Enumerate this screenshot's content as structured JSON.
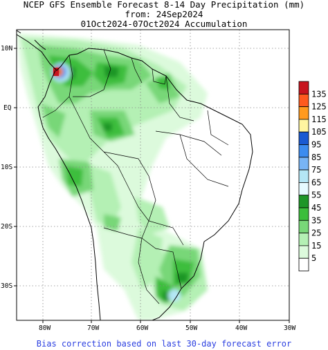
{
  "title": {
    "line1": "NCEP GFS Ensemble Forecast 8-14 Day Precipitation (mm)",
    "line2": "from: 24Sep2024",
    "line3": "01Oct2024-07Oct2024 Accumulation"
  },
  "footer": "Bias correction based on last 30-day forecast error",
  "axes": {
    "lon_ticks": [
      "80W",
      "70W",
      "60W",
      "50W",
      "40W",
      "30W"
    ],
    "lat_ticks": [
      "10N",
      "EQ",
      "10S",
      "20S",
      "30S"
    ]
  },
  "legend": [
    {
      "label": "135",
      "color": "#c8141e"
    },
    {
      "label": "125",
      "color": "#ff5a1e"
    },
    {
      "label": "115",
      "color": "#ff9a1e"
    },
    {
      "label": "105",
      "color": "#fff5a0"
    },
    {
      "label": "95",
      "color": "#1a5ad2"
    },
    {
      "label": "85",
      "color": "#3c8cf0"
    },
    {
      "label": "75",
      "color": "#78b4f5"
    },
    {
      "label": "65",
      "color": "#b4e6f5"
    },
    {
      "label": "55",
      "color": "#e6faff"
    },
    {
      "label": "45",
      "color": "#1e9628"
    },
    {
      "label": "35",
      "color": "#3cbe3c"
    },
    {
      "label": "25",
      "color": "#78d778"
    },
    {
      "label": "15",
      "color": "#b4f0b4"
    },
    {
      "label": "5",
      "color": "#dcfadc"
    },
    {
      "label": "",
      "color": "#ffffff"
    }
  ]
}
